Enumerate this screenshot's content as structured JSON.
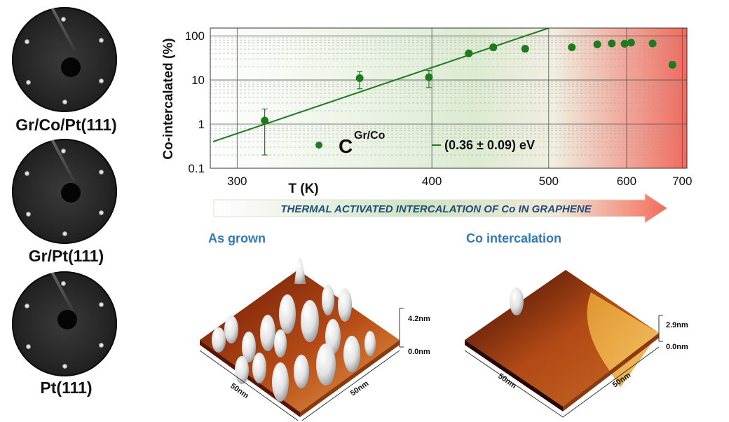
{
  "leed_patterns": [
    {
      "label": "Gr/Co/Pt(111)",
      "icon": "leed-pattern-grco-icon"
    },
    {
      "label": "Gr/Pt(111)",
      "icon": "leed-pattern-grpt-icon"
    },
    {
      "label": "Pt(111)",
      "icon": "leed-pattern-pt-icon"
    }
  ],
  "chart_data": {
    "type": "scatter",
    "xscale": "reciprocal",
    "yscale": "log",
    "xlabel": "T (K)",
    "ylabel": "Co-intercalated (%)",
    "xlim": [
      290,
      710
    ],
    "ylim": [
      0.1,
      150
    ],
    "xticks": [
      300,
      400,
      500,
      600,
      700
    ],
    "yticks": [
      0.1,
      1,
      10,
      100
    ],
    "ytick_labels": [
      "0.1",
      "1",
      "10",
      "100"
    ],
    "series": [
      {
        "name": "C",
        "name_sup": "Gr/Co",
        "color": "#1e7a1e",
        "points": [
          {
            "x": 311,
            "y": 1.2,
            "ylo": 0.2,
            "yhi": 2.2
          },
          {
            "x": 356,
            "y": 11.0,
            "ylo": 6.3,
            "yhi": 15.6
          },
          {
            "x": 398,
            "y": 11.5,
            "ylo": 6.7,
            "yhi": 16.3
          },
          {
            "x": 427,
            "y": 40,
            "ylo": 35,
            "yhi": 45
          },
          {
            "x": 447,
            "y": 55,
            "ylo": 47,
            "yhi": 63
          },
          {
            "x": 476,
            "y": 51,
            "ylo": 44,
            "yhi": 58
          },
          {
            "x": 526,
            "y": 55,
            "ylo": 48,
            "yhi": 62
          },
          {
            "x": 558,
            "y": 64,
            "ylo": 56,
            "yhi": 72
          },
          {
            "x": 578,
            "y": 67,
            "ylo": 59,
            "yhi": 75
          },
          {
            "x": 597,
            "y": 66,
            "ylo": 58,
            "yhi": 74
          },
          {
            "x": 607,
            "y": 70,
            "ylo": 62,
            "yhi": 78
          },
          {
            "x": 643,
            "y": 67,
            "ylo": 59,
            "yhi": 75
          },
          {
            "x": 680,
            "y": 22,
            "ylo": 19,
            "yhi": 26
          }
        ]
      }
    ],
    "fit": {
      "label": "(0.36 ± 0.09) eV",
      "color": "#1e7a1e",
      "points": [
        {
          "x": 291,
          "y": 0.4
        },
        {
          "x": 500,
          "y": 150
        }
      ]
    },
    "arrow_banner": "THERMAL ACTIVATED INTERCALATION OF Co IN GRAPHENE"
  },
  "afm_panels": [
    {
      "title": "As grown",
      "z_max": "4.2nm",
      "z_min": "0.0nm",
      "x_axis": "50nm",
      "y_axis": "50nm",
      "icon": "afm-as-grown-icon"
    },
    {
      "title": "Co intercalation",
      "z_max": "2.9nm",
      "z_min": "0.0nm",
      "x_axis": "50nm",
      "y_axis": "50nm",
      "icon": "afm-co-intercalation-icon"
    }
  ]
}
